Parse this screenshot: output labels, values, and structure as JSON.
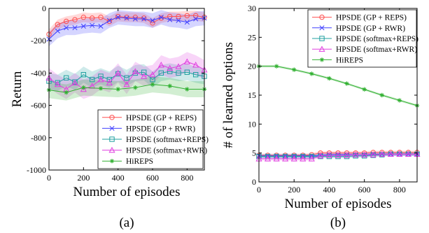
{
  "chart_data": [
    {
      "type": "line",
      "caption": "(a)",
      "xlabel": "Number of episodes",
      "ylabel": "Return",
      "xlim": [
        0,
        900
      ],
      "ylim": [
        -1000,
        0
      ],
      "xticks": [
        "0",
        "200",
        "400",
        "600",
        "800"
      ],
      "yticks": [
        "0",
        "-200",
        "-400",
        "-600",
        "-800",
        "-1000"
      ],
      "reference_line": 0,
      "legend_position": "lower-right",
      "series": [
        {
          "name": "HPSDE (GP + REPS)",
          "color": "#ff5050",
          "marker": "circle",
          "x": [
            0,
            50,
            100,
            150,
            200,
            250,
            300,
            350,
            400,
            450,
            500,
            550,
            600,
            650,
            700,
            750,
            800,
            850,
            900
          ],
          "y": [
            -160,
            -100,
            -80,
            -70,
            -55,
            -60,
            -55,
            -80,
            -50,
            -55,
            -55,
            -60,
            -90,
            -60,
            -50,
            -50,
            -45,
            -45,
            -55
          ],
          "band": 30
        },
        {
          "name": "HPSDE (GP + RWR)",
          "color": "#4040ff",
          "marker": "cross",
          "x": [
            0,
            50,
            100,
            150,
            200,
            250,
            300,
            350,
            400,
            450,
            500,
            550,
            600,
            650,
            700,
            750,
            800,
            850,
            900
          ],
          "y": [
            -190,
            -140,
            -120,
            -120,
            -110,
            -105,
            -110,
            -75,
            -55,
            -60,
            -65,
            -65,
            -75,
            -55,
            -70,
            -75,
            -85,
            -65,
            -60
          ],
          "band": 45
        },
        {
          "name": "HPSDE (softmax+REPS)",
          "color": "#20a0a0",
          "marker": "square",
          "x": [
            0,
            50,
            100,
            150,
            200,
            250,
            300,
            350,
            400,
            450,
            500,
            550,
            600,
            650,
            700,
            750,
            800,
            850,
            900
          ],
          "y": [
            -450,
            -460,
            -430,
            -455,
            -410,
            -440,
            -420,
            -440,
            -405,
            -430,
            -400,
            -395,
            -440,
            -400,
            -390,
            -400,
            -395,
            -410,
            -420
          ],
          "band": 50
        },
        {
          "name": "HPSDE (softmax+RWR)",
          "color": "#e040e0",
          "marker": "triangle",
          "x": [
            0,
            50,
            100,
            150,
            200,
            250,
            300,
            350,
            400,
            450,
            500,
            550,
            600,
            650,
            700,
            750,
            800,
            850,
            900
          ],
          "y": [
            -430,
            -470,
            -500,
            -460,
            -500,
            -480,
            -440,
            -460,
            -400,
            -470,
            -390,
            -420,
            -410,
            -350,
            -370,
            -360,
            -330,
            -350,
            -380
          ],
          "band": 60
        },
        {
          "name": "HiREPS",
          "color": "#30b030",
          "marker": "star",
          "x": [
            0,
            100,
            200,
            300,
            400,
            500,
            600,
            700,
            800,
            900
          ],
          "y": [
            -505,
            -520,
            -490,
            -495,
            -500,
            -490,
            -470,
            -480,
            -500,
            -500
          ],
          "band": 50
        }
      ]
    },
    {
      "type": "line",
      "caption": "(b)",
      "xlabel": "Number of episodes",
      "ylabel": "# of learned options",
      "xlim": [
        0,
        900
      ],
      "ylim": [
        0,
        30
      ],
      "xticks": [
        "0",
        "200",
        "400",
        "600",
        "800"
      ],
      "yticks": [
        "0",
        "5",
        "10",
        "15",
        "20",
        "25",
        "30"
      ],
      "legend_position": "top-right",
      "series": [
        {
          "name": "HPSDE (GP + REPS)",
          "color": "#ff5050",
          "marker": "circle",
          "x": [
            0,
            50,
            100,
            150,
            200,
            250,
            300,
            350,
            400,
            450,
            500,
            550,
            600,
            650,
            700,
            750,
            800,
            850,
            900
          ],
          "y": [
            4.6,
            4.6,
            4.6,
            4.6,
            4.6,
            4.6,
            4.7,
            5.0,
            5.0,
            5.0,
            5.0,
            5.0,
            5.0,
            5.1,
            5.1,
            5.1,
            5.1,
            5.1,
            5.1
          ],
          "band": 0.3
        },
        {
          "name": "HPSDE (GP + RWR)",
          "color": "#4040ff",
          "marker": "cross",
          "x": [
            0,
            50,
            100,
            150,
            200,
            250,
            300,
            350,
            400,
            450,
            500,
            550,
            600,
            650,
            700,
            750,
            800,
            850,
            900
          ],
          "y": [
            4.5,
            4.5,
            4.5,
            4.5,
            4.5,
            4.5,
            4.5,
            4.6,
            4.7,
            4.7,
            4.7,
            4.7,
            4.7,
            4.8,
            4.8,
            4.8,
            4.8,
            4.8,
            4.8
          ],
          "band": 0.3
        },
        {
          "name": "HPSDE (softmax+REPS)",
          "color": "#20a0a0",
          "marker": "square",
          "x": [
            0,
            50,
            100,
            150,
            200,
            250,
            300,
            350,
            400,
            450,
            500,
            550,
            600,
            650,
            700,
            750,
            800,
            850,
            900
          ],
          "y": [
            4.4,
            4.4,
            4.4,
            4.4,
            4.4,
            4.4,
            4.4,
            4.4,
            4.4,
            4.4,
            4.4,
            4.5,
            4.5,
            4.6,
            4.7,
            4.8,
            4.8,
            4.8,
            4.8
          ],
          "band": 0.3
        },
        {
          "name": "HPSDE (softmax+RWR)",
          "color": "#e040e0",
          "marker": "triangle",
          "x": [
            0,
            50,
            100,
            150,
            200,
            250,
            300,
            350,
            400,
            450,
            500,
            550,
            600,
            650,
            700,
            750,
            800,
            850,
            900
          ],
          "y": [
            4.0,
            4.0,
            4.0,
            4.0,
            4.0,
            4.0,
            4.0,
            4.5,
            4.6,
            4.6,
            4.6,
            4.7,
            4.7,
            4.7,
            4.8,
            4.8,
            4.8,
            4.8,
            4.8
          ],
          "band": 0.3
        },
        {
          "name": "HiREPS",
          "color": "#30b030",
          "marker": "star",
          "x": [
            0,
            100,
            200,
            300,
            400,
            500,
            600,
            700,
            800,
            900
          ],
          "y": [
            20,
            20,
            19.4,
            18.7,
            17.9,
            17.0,
            16.0,
            15.0,
            14.1,
            13.2
          ],
          "band": 0.2
        }
      ]
    }
  ]
}
